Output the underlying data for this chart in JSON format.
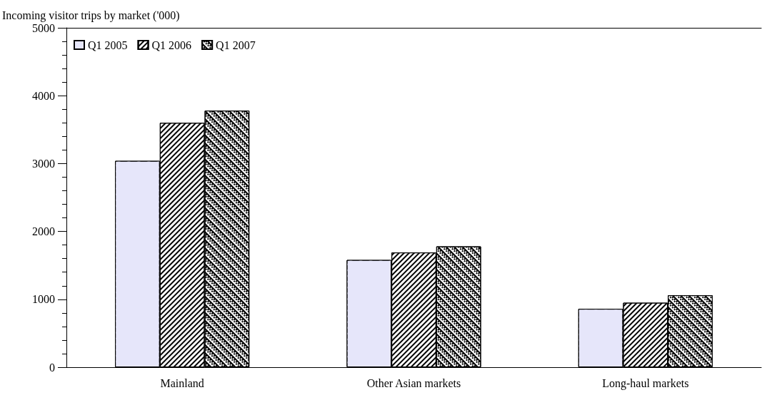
{
  "chart_data": {
    "type": "bar",
    "ylabel": "Incoming visitor trips by market ('000)",
    "categories": [
      "Mainland",
      "Other Asian markets",
      "Long-haul markets"
    ],
    "series": [
      {
        "name": "Q1 2005",
        "color": "#e6e6fa",
        "values": [
          3040,
          1580,
          860
        ]
      },
      {
        "name": "Q1 2006",
        "color": "#000000",
        "values": [
          3600,
          1690,
          950
        ]
      },
      {
        "name": "Q1 2007",
        "color": "#000000",
        "values": [
          3780,
          1780,
          1060
        ]
      }
    ],
    "ylim": [
      0,
      5000
    ],
    "yticks": [
      0,
      1000,
      2000,
      3000,
      4000,
      5000
    ],
    "grid": false,
    "legend": "top left"
  }
}
